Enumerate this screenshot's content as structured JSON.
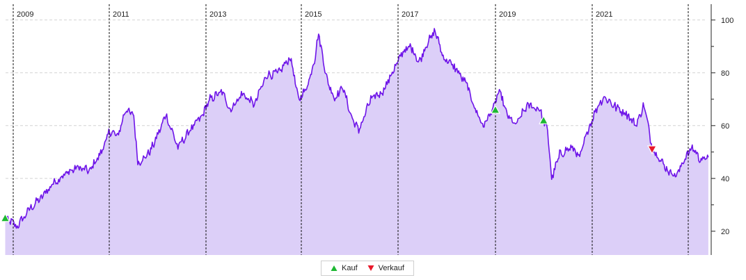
{
  "chart_data": {
    "type": "area",
    "x_labels": [
      "2009",
      "2011",
      "2013",
      "2015",
      "2017",
      "2019",
      "2021"
    ],
    "y_ticks": [
      20,
      40,
      60,
      80,
      100
    ],
    "ylim": [
      11,
      106
    ],
    "grid": true,
    "series": [
      {
        "color": "#6e14e8",
        "fill": "#dccff8",
        "points": [
          [
            "2008-11",
            25
          ],
          [
            "2009-02",
            22
          ],
          [
            "2009-05",
            28
          ],
          [
            "2009-08",
            33
          ],
          [
            "2009-11",
            38
          ],
          [
            "2010-02",
            42
          ],
          [
            "2010-05",
            44
          ],
          [
            "2010-08",
            43
          ],
          [
            "2010-11",
            50
          ],
          [
            "2011-01",
            58
          ],
          [
            "2011-03",
            56
          ],
          [
            "2011-05",
            66
          ],
          [
            "2011-07",
            64
          ],
          [
            "2011-08",
            46
          ],
          [
            "2011-10",
            48
          ],
          [
            "2011-12",
            53
          ],
          [
            "2012-03",
            64
          ],
          [
            "2012-06",
            52
          ],
          [
            "2012-09",
            58
          ],
          [
            "2012-12",
            64
          ],
          [
            "2013-02",
            70
          ],
          [
            "2013-05",
            73
          ],
          [
            "2013-07",
            66
          ],
          [
            "2013-10",
            72
          ],
          [
            "2014-01",
            68
          ],
          [
            "2014-04",
            79
          ],
          [
            "2014-07",
            80
          ],
          [
            "2014-10",
            86
          ],
          [
            "2014-12",
            70
          ],
          [
            "2015-02",
            74
          ],
          [
            "2015-04",
            85
          ],
          [
            "2015-05",
            95
          ],
          [
            "2015-07",
            78
          ],
          [
            "2015-09",
            70
          ],
          [
            "2015-11",
            75
          ],
          [
            "2016-01",
            64
          ],
          [
            "2016-03",
            58
          ],
          [
            "2016-06",
            70
          ],
          [
            "2016-09",
            73
          ],
          [
            "2016-12",
            82
          ],
          [
            "2017-02",
            88
          ],
          [
            "2017-04",
            90
          ],
          [
            "2017-06",
            84
          ],
          [
            "2017-08",
            91
          ],
          [
            "2017-10",
            96
          ],
          [
            "2017-12",
            86
          ],
          [
            "2018-03",
            82
          ],
          [
            "2018-06",
            75
          ],
          [
            "2018-08",
            66
          ],
          [
            "2018-10",
            60
          ],
          [
            "2018-12",
            65
          ],
          [
            "2019-02",
            73
          ],
          [
            "2019-04",
            64
          ],
          [
            "2019-06",
            60
          ],
          [
            "2019-09",
            68
          ],
          [
            "2019-12",
            66
          ],
          [
            "2020-02",
            58
          ],
          [
            "2020-03",
            40
          ],
          [
            "2020-05",
            49
          ],
          [
            "2020-08",
            52
          ],
          [
            "2020-10",
            48
          ],
          [
            "2020-12",
            58
          ],
          [
            "2021-02",
            66
          ],
          [
            "2021-04",
            71
          ],
          [
            "2021-07",
            67
          ],
          [
            "2021-10",
            64
          ],
          [
            "2021-12",
            60
          ],
          [
            "2022-02",
            68
          ],
          [
            "2022-04",
            52
          ],
          [
            "2022-06",
            47
          ],
          [
            "2022-08",
            43
          ],
          [
            "2022-10",
            41
          ],
          [
            "2022-12",
            47
          ],
          [
            "2023-02",
            52
          ],
          [
            "2023-04",
            47
          ],
          [
            "2023-06",
            48
          ]
        ]
      }
    ],
    "markers": [
      {
        "type": "Kauf",
        "date": "2008-11",
        "value": 25
      },
      {
        "type": "Kauf",
        "date": "2019-01",
        "value": 66
      },
      {
        "type": "Kauf",
        "date": "2020-01",
        "value": 62
      },
      {
        "type": "Verkauf",
        "date": "2022-04",
        "value": 51
      }
    ],
    "legend": [
      {
        "label": "Kauf",
        "color": "#1db832"
      },
      {
        "label": "Verkauf",
        "color": "#e8192b"
      }
    ]
  }
}
